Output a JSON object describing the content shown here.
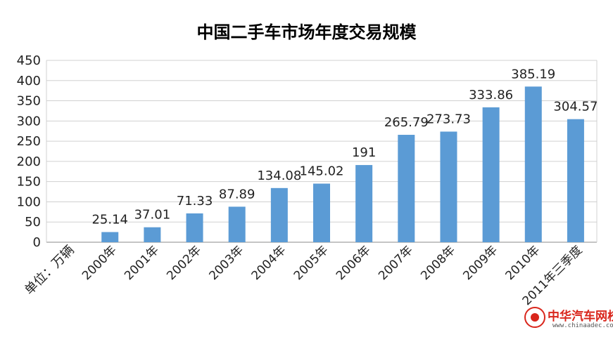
{
  "chart_data": {
    "type": "bar",
    "title": "中国二手车市场年度交易规模",
    "unit_label": "单位：万辆",
    "categories": [
      "2000年",
      "2001年",
      "2002年",
      "2003年",
      "2004年",
      "2005年",
      "2006年",
      "2007年",
      "2008年",
      "2009年",
      "2010年",
      "2011年三季度"
    ],
    "values": [
      25.14,
      37.01,
      71.33,
      87.89,
      134.08,
      145.02,
      191,
      265.79,
      273.73,
      333.86,
      385.19,
      304.57
    ],
    "data_labels": [
      "25.14",
      "37.01",
      "71.33",
      "87.89",
      "134.08",
      "145.02",
      "191",
      "265.79",
      "273.73",
      "333.86",
      "385.19",
      "304.57"
    ],
    "y_ticks": [
      "0",
      "50",
      "100",
      "150",
      "200",
      "250",
      "300",
      "350",
      "400",
      "450"
    ],
    "ylim": [
      0,
      450
    ],
    "grid": true,
    "legend": false,
    "bar_color": "#5b9bd5"
  },
  "logo": {
    "name": "中华汽车网校",
    "url": "www.chinaadec.com"
  }
}
